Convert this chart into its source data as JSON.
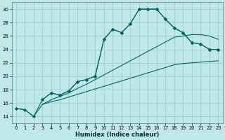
{
  "xlabel": "Humidex (Indice chaleur)",
  "bg_color": "#c0e8e8",
  "grid_color": "#96c8c8",
  "line_color": "#006666",
  "xlim": [
    -0.5,
    23.5
  ],
  "ylim": [
    13.0,
    31.0
  ],
  "yticks": [
    14,
    16,
    18,
    20,
    22,
    24,
    26,
    28,
    30
  ],
  "xticks": [
    0,
    1,
    2,
    3,
    4,
    5,
    6,
    7,
    8,
    9,
    10,
    11,
    12,
    13,
    14,
    15,
    16,
    17,
    18,
    19,
    20,
    21,
    22,
    23
  ],
  "series": [
    {
      "x": [
        0,
        1,
        2,
        3,
        4,
        5,
        6,
        7,
        8,
        9,
        10,
        11,
        12,
        13,
        14,
        15,
        16,
        17,
        18,
        19,
        20,
        21,
        22,
        23
      ],
      "y": [
        15.2,
        15.0,
        14.0,
        15.8,
        16.2,
        16.5,
        16.9,
        17.3,
        17.7,
        18.1,
        18.5,
        18.9,
        19.3,
        19.7,
        20.1,
        20.5,
        20.9,
        21.3,
        21.7,
        21.9,
        22.0,
        22.1,
        22.2,
        22.3
      ],
      "marker": null,
      "linewidth": 0.8
    },
    {
      "x": [
        3,
        4,
        5,
        6,
        7,
        8,
        9,
        10,
        11,
        12,
        13,
        14,
        15,
        16,
        17,
        18,
        19,
        20,
        21,
        22,
        23
      ],
      "y": [
        15.8,
        16.5,
        17.0,
        17.5,
        18.2,
        18.8,
        19.5,
        20.2,
        20.9,
        21.6,
        22.3,
        23.0,
        23.7,
        24.4,
        25.1,
        25.8,
        26.0,
        26.2,
        26.2,
        26.0,
        25.5
      ],
      "marker": null,
      "linewidth": 0.8
    },
    {
      "x": [
        0,
        1,
        2,
        3,
        4,
        5,
        6,
        7,
        8,
        9,
        10,
        11,
        12,
        13,
        14,
        15,
        16,
        17,
        18,
        19,
        20,
        21,
        22,
        23
      ],
      "y": [
        15.2,
        15.0,
        14.0,
        16.5,
        17.5,
        17.2,
        17.8,
        19.2,
        19.5,
        20.0,
        25.5,
        27.0,
        26.5,
        27.8,
        30.0,
        30.0,
        30.0,
        28.5,
        27.2,
        26.5,
        25.0,
        24.8,
        24.0,
        24.0
      ],
      "marker": "D",
      "markersize": 2.2,
      "linewidth": 0.8
    },
    {
      "x": [
        3,
        4,
        5,
        6,
        7,
        8,
        9,
        10,
        11,
        12,
        13,
        14,
        15,
        16,
        17,
        18,
        19,
        20,
        21,
        22,
        23
      ],
      "y": [
        16.5,
        17.5,
        17.2,
        17.8,
        19.2,
        19.5,
        20.0,
        25.5,
        27.0,
        26.5,
        27.8,
        30.0,
        30.0,
        30.0,
        28.5,
        27.2,
        26.5,
        25.0,
        24.8,
        24.0,
        24.0
      ],
      "marker": "D",
      "markersize": 2.2,
      "linewidth": 0.8
    }
  ]
}
